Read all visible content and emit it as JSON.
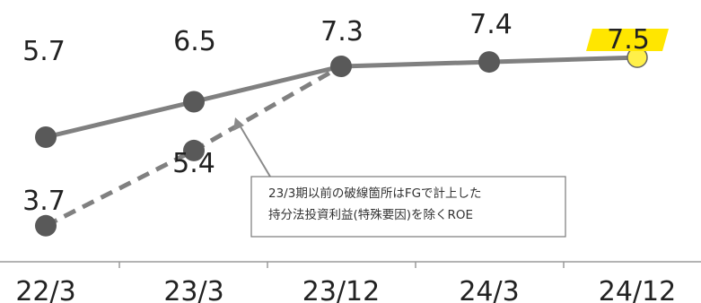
{
  "chart_data": {
    "type": "line",
    "categories": [
      "22/3",
      "23/3",
      "23/12",
      "24/3",
      "24/12"
    ],
    "series": [
      {
        "values": [
          5.7,
          6.5,
          7.3,
          7.4,
          7.5
        ],
        "line_style": "solid",
        "color": "#808080"
      },
      {
        "values": [
          3.7,
          5.4,
          7.3,
          null,
          null
        ],
        "line_style": "dashed",
        "color": "#808080"
      }
    ],
    "data_labels": [
      "5.7",
      "6.5",
      "7.3",
      "7.4",
      "7.5",
      "3.7",
      "5.4"
    ],
    "highlight": {
      "category": "24/12",
      "value": 7.5,
      "marker_color": "#fff049",
      "label_bg_color": "#ffe600"
    },
    "annotation": {
      "lines": [
        "23/3期以前の破線箇所はFGで計上した",
        "持分法投資利益(特殊要因)を除くROE"
      ]
    },
    "marker_color": "#595959",
    "grid": false
  }
}
